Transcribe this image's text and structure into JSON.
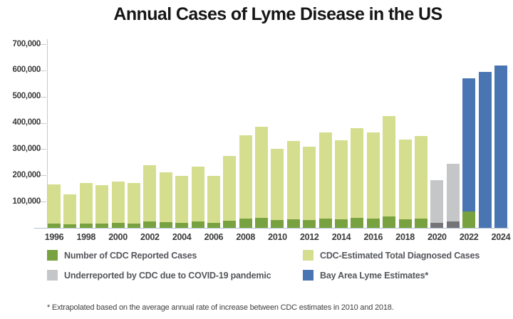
{
  "title": "Annual Cases of Lyme Disease in the US",
  "footnote": "* Extrapolated based on the average annual rate of increase between CDC estimates in 2010 and 2018.",
  "colors": {
    "reported_green": "#78a23f",
    "estimated_light_green": "#d5de8e",
    "underreported_gray": "#c5c6c8",
    "covid_reported_dark_gray": "#747579",
    "bay_area_blue": "#4a75b3",
    "axis_line": "#b3c0cc",
    "text_dark": "#3b3b3b"
  },
  "legend": {
    "items": [
      {
        "label": "Number of CDC Reported Cases",
        "color_key": "reported_green"
      },
      {
        "label": "CDC-Estimated Total Diagnosed Cases",
        "color_key": "estimated_light_green"
      },
      {
        "label": "Underreported by CDC due to COVID-19 pandemic",
        "color_key": "underreported_gray"
      },
      {
        "label": "Bay Area Lyme Estimates*",
        "color_key": "bay_area_blue"
      }
    ]
  },
  "chart_data": {
    "type": "bar",
    "stacked": true,
    "title": "Annual Cases of Lyme Disease in the US",
    "xlabel": "",
    "ylabel": "",
    "ylim": [
      0,
      700000
    ],
    "y_tick_labels": [
      "700,000",
      "600,000",
      "500,000",
      "400,000",
      "300,000",
      "200,000",
      "100,000"
    ],
    "x_tick_years": [
      1996,
      1998,
      2000,
      2002,
      2004,
      2006,
      2008,
      2010,
      2012,
      2014,
      2016,
      2018,
      2020,
      2022,
      2024
    ],
    "grid": false,
    "legend_position": "bottom",
    "series_description": "Each bar stacks reported cases (bottom segment) under the estimated/extrapolated total (full bar height).",
    "bars": [
      {
        "year": 1996,
        "reported": 16455,
        "total": 165000,
        "category": "cdc"
      },
      {
        "year": 1997,
        "reported": 12801,
        "total": 128000,
        "category": "cdc"
      },
      {
        "year": 1998,
        "reported": 16991,
        "total": 170000,
        "category": "cdc"
      },
      {
        "year": 1999,
        "reported": 16273,
        "total": 163000,
        "category": "cdc"
      },
      {
        "year": 2000,
        "reported": 17730,
        "total": 177000,
        "category": "cdc"
      },
      {
        "year": 2001,
        "reported": 17029,
        "total": 170000,
        "category": "cdc"
      },
      {
        "year": 2002,
        "reported": 23763,
        "total": 238000,
        "category": "cdc"
      },
      {
        "year": 2003,
        "reported": 21273,
        "total": 213000,
        "category": "cdc"
      },
      {
        "year": 2004,
        "reported": 19804,
        "total": 198000,
        "category": "cdc"
      },
      {
        "year": 2005,
        "reported": 23305,
        "total": 233000,
        "category": "cdc"
      },
      {
        "year": 2006,
        "reported": 19931,
        "total": 199000,
        "category": "cdc"
      },
      {
        "year": 2007,
        "reported": 27444,
        "total": 274000,
        "category": "cdc"
      },
      {
        "year": 2008,
        "reported": 35198,
        "total": 352000,
        "category": "cdc"
      },
      {
        "year": 2009,
        "reported": 38468,
        "total": 385000,
        "category": "cdc"
      },
      {
        "year": 2010,
        "reported": 30158,
        "total": 302000,
        "category": "cdc"
      },
      {
        "year": 2011,
        "reported": 33097,
        "total": 331000,
        "category": "cdc"
      },
      {
        "year": 2012,
        "reported": 30831,
        "total": 308000,
        "category": "cdc"
      },
      {
        "year": 2013,
        "reported": 36307,
        "total": 363000,
        "category": "cdc"
      },
      {
        "year": 2014,
        "reported": 33461,
        "total": 335000,
        "category": "cdc"
      },
      {
        "year": 2015,
        "reported": 38069,
        "total": 381000,
        "category": "cdc"
      },
      {
        "year": 2016,
        "reported": 36429,
        "total": 364000,
        "category": "cdc"
      },
      {
        "year": 2017,
        "reported": 42743,
        "total": 427000,
        "category": "cdc"
      },
      {
        "year": 2018,
        "reported": 33666,
        "total": 337000,
        "category": "cdc"
      },
      {
        "year": 2019,
        "reported": 34945,
        "total": 349000,
        "category": "cdc"
      },
      {
        "year": 2020,
        "reported": 18000,
        "total": 182000,
        "category": "covid"
      },
      {
        "year": 2021,
        "reported": 24000,
        "total": 245000,
        "category": "covid"
      },
      {
        "year": 2022,
        "reported": 62551,
        "total": 570000,
        "category": "bayarea"
      },
      {
        "year": 2023,
        "reported": 0,
        "total": 595000,
        "category": "bayarea"
      },
      {
        "year": 2024,
        "reported": 0,
        "total": 620000,
        "category": "bayarea"
      }
    ]
  }
}
